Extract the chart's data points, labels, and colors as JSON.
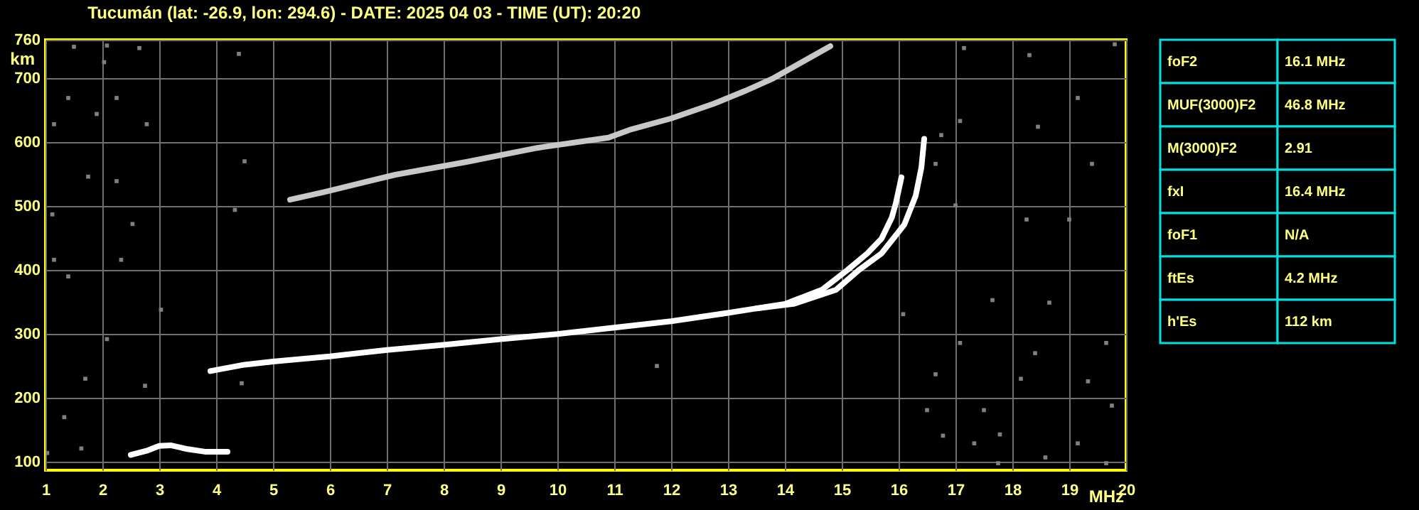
{
  "chart_data": [
    {
      "type": "line",
      "title": "Tucumán (lat: -26.9, lon: 294.6) - DATE: 2025 04 03 - TIME (UT): 20:20",
      "xlabel": "MHz",
      "ylabel": "km",
      "xlim": [
        1,
        20
      ],
      "ylim": [
        87,
        760
      ],
      "xticks": [
        1,
        2,
        3,
        4,
        5,
        6,
        7,
        8,
        9,
        10,
        11,
        12,
        13,
        14,
        15,
        16,
        17,
        18,
        19,
        20
      ],
      "yticks": [
        100,
        200,
        300,
        400,
        500,
        600,
        700,
        760
      ],
      "grid": true,
      "line_style": "solid",
      "marker": "none",
      "series": [
        {
          "color": "#ffffff",
          "x": [
            3.9,
            4.5,
            5,
            6,
            7,
            8,
            9,
            10,
            11,
            12,
            13,
            14,
            14.65,
            15.1,
            15.45,
            15.7,
            15.88,
            15.95,
            16.05
          ],
          "values": [
            242,
            252,
            257,
            265,
            275,
            283,
            292,
            300,
            310,
            320,
            333,
            347,
            369,
            400,
            426,
            449,
            482,
            504,
            545
          ]
        },
        {
          "color": "#ffffff",
          "x": [
            13.5,
            14.15,
            14.9,
            15.3,
            15.7,
            16.1,
            16.3,
            16.4,
            16.45
          ],
          "values": [
            340,
            347,
            369,
            400,
            426,
            471,
            516,
            560,
            605
          ]
        },
        {
          "color": "#c8c8c8",
          "x": [
            5.3,
            5.9,
            7.15,
            8.4,
            9.65,
            10.9,
            11.3,
            12,
            12.75,
            13.3,
            13.8,
            14.3,
            14.8
          ],
          "values": [
            510,
            522,
            549,
            569,
            591,
            607,
            620,
            637,
            660,
            680,
            700,
            725,
            750
          ]
        },
        {
          "color": "#ffffff",
          "x": [
            2.5,
            2.8,
            3,
            3.2,
            3.5,
            3.8,
            4.2
          ],
          "values": [
            111,
            118,
            125,
            126,
            120,
            116,
            116
          ]
        },
        {
          "type": "scatter",
          "marker": "square",
          "color": "#808080",
          "x": [
            1.5,
            2.08,
            2.03,
            2.65,
            4.4,
            1.4,
            2.25,
            1.15,
            2.78,
            1.9,
            4.5,
            1.75,
            2.25,
            1.12,
            4.33,
            2.53,
            1.15,
            1.4,
            2.33,
            2.08,
            2.75,
            1.7,
            1.33,
            1.63,
            1.03,
            3.03,
            4.45,
            11.75,
            17.15,
            18.3,
            19.8,
            17.08,
            18.45,
            19.15,
            16.75,
            19.4,
            16.65,
            18.25,
            19,
            17,
            16.08,
            17.65,
            18.65,
            17.08,
            18.4,
            19.65,
            16.65,
            18.15,
            19.33,
            16.5,
            17.5,
            19.75,
            16.78,
            17.78,
            19.15,
            17.33,
            18.58,
            17.75,
            19.65
          ],
          "values": [
            749,
            751,
            725,
            747,
            738,
            669,
            669,
            628,
            628,
            644,
            570,
            546,
            539,
            487,
            494,
            472,
            416,
            390,
            416,
            292,
            219,
            230,
            170,
            121,
            114,
            338,
            223,
            250,
            747,
            736,
            753,
            633,
            624,
            669,
            611,
            566,
            566,
            479,
            479,
            501,
            331,
            353,
            349,
            286,
            270,
            286,
            237,
            230,
            226,
            181,
            181,
            188,
            141,
            143,
            129,
            129,
            107,
            98,
            98
          ]
        }
      ]
    },
    {
      "type": "other",
      "annotations": [
        "foF2",
        "16.1 MHz",
        "MUF(3000)F2",
        "46.8 MHz",
        "M(3000)F2",
        "2.91",
        "fxI",
        "16.4 MHz",
        "foF1",
        "N/A",
        "ftEs",
        "4.2 MHz",
        "h'Es",
        "112 km"
      ]
    }
  ]
}
